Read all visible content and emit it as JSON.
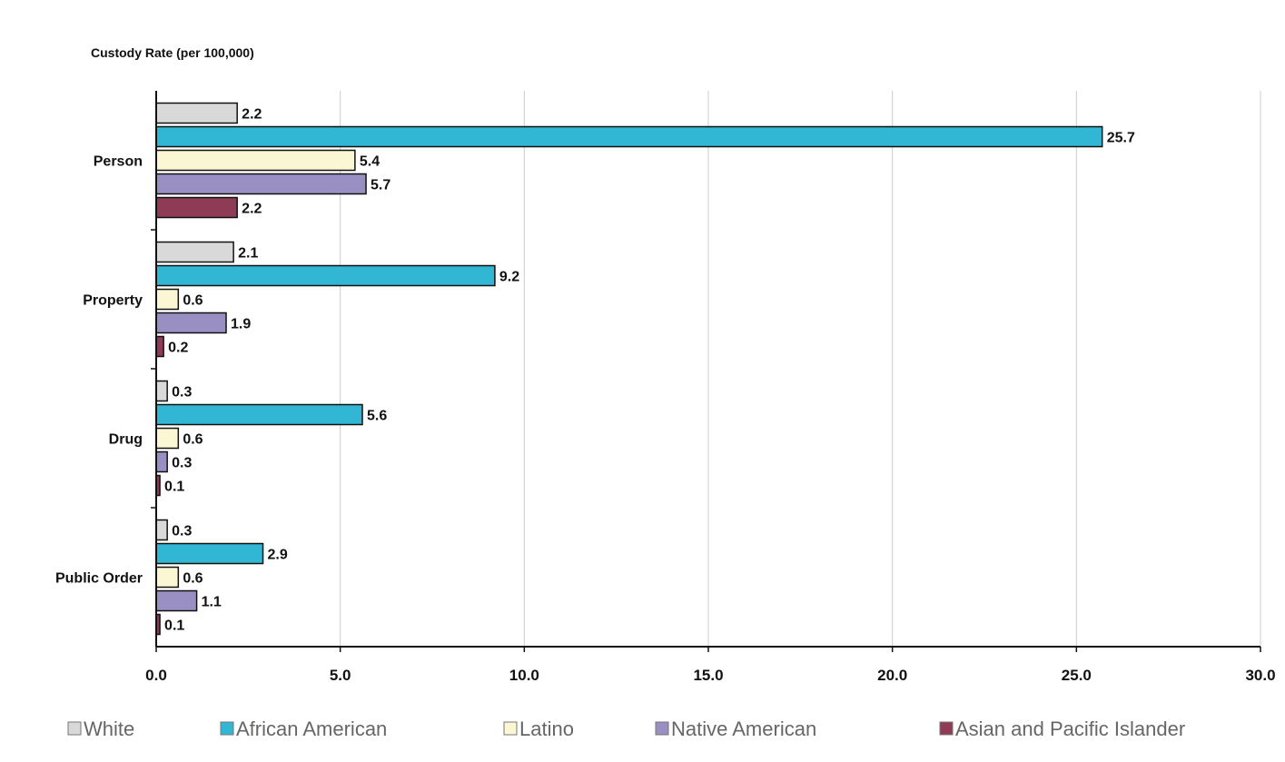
{
  "chart_data": {
    "type": "bar",
    "orientation": "horizontal",
    "ylabel": "Custody Rate (per 100,000)",
    "categories": [
      "Person",
      "Property",
      "Drug",
      "Public Order"
    ],
    "series": [
      {
        "name": "White",
        "color": "#d9d9d9",
        "values": [
          2.2,
          2.1,
          0.3,
          0.3
        ]
      },
      {
        "name": "African American",
        "color": "#31b6d4",
        "values": [
          25.7,
          9.2,
          5.6,
          2.9
        ]
      },
      {
        "name": "Latino",
        "color": "#fbf7d4",
        "values": [
          5.4,
          0.6,
          0.6,
          0.6
        ]
      },
      {
        "name": "Native American",
        "color": "#9a8fc2",
        "values": [
          5.7,
          1.9,
          0.3,
          1.1
        ]
      },
      {
        "name": "Asian and Pacific Islander",
        "color": "#8e3b55",
        "values": [
          2.2,
          0.2,
          0.1,
          0.1
        ]
      }
    ],
    "data_labels": [
      [
        "2.2",
        "25.7",
        "5.4",
        "5.7",
        "2.2"
      ],
      [
        "2.1",
        "9.2",
        "0.6",
        "1.9",
        "0.2"
      ],
      [
        "0.3",
        "5.6",
        "0.6",
        "0.3",
        "0.1"
      ],
      [
        "0.3",
        "2.9",
        "0.6",
        "1.1",
        "0.1"
      ]
    ],
    "xlim": [
      0,
      30
    ],
    "xticks": [
      "0.0",
      "5.0",
      "10.0",
      "15.0",
      "20.0",
      "25.0",
      "30.0"
    ],
    "grid": "vertical",
    "legend_position": "bottom"
  }
}
